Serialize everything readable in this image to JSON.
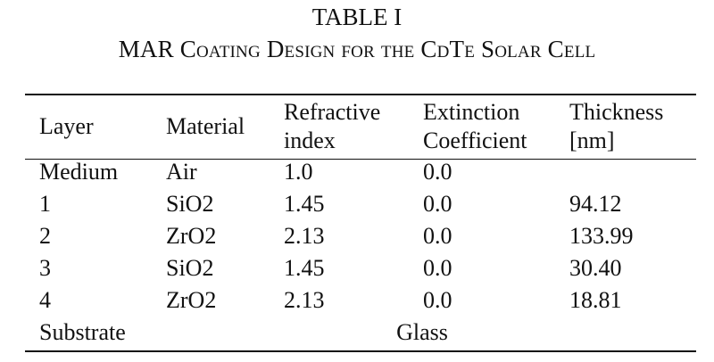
{
  "caption": {
    "label": "TABLE I",
    "title": "MAR Coating Design for the CdTe Solar Cell"
  },
  "table": {
    "headers": {
      "layer": "Layer",
      "material": "Material",
      "refractive_line1": "Refractive",
      "refractive_line2": "index",
      "extinction_line1": "Extinction",
      "extinction_line2": "Coefficient",
      "thickness_line1": "Thickness",
      "thickness_line2": "[nm]"
    },
    "rows": [
      {
        "layer": "Medium",
        "material": "Air",
        "refractive_index": "1.0",
        "extinction": "0.0",
        "thickness": ""
      },
      {
        "layer": "1",
        "material": "SiO2",
        "refractive_index": "1.45",
        "extinction": "0.0",
        "thickness": "94.12"
      },
      {
        "layer": "2",
        "material": "ZrO2",
        "refractive_index": "2.13",
        "extinction": "0.0",
        "thickness": "133.99"
      },
      {
        "layer": "3",
        "material": "SiO2",
        "refractive_index": "1.45",
        "extinction": "0.0",
        "thickness": "30.40"
      },
      {
        "layer": "4",
        "material": "ZrO2",
        "refractive_index": "2.13",
        "extinction": "0.0",
        "thickness": "18.81"
      }
    ],
    "substrate": {
      "label": "Substrate",
      "value": "Glass"
    }
  }
}
